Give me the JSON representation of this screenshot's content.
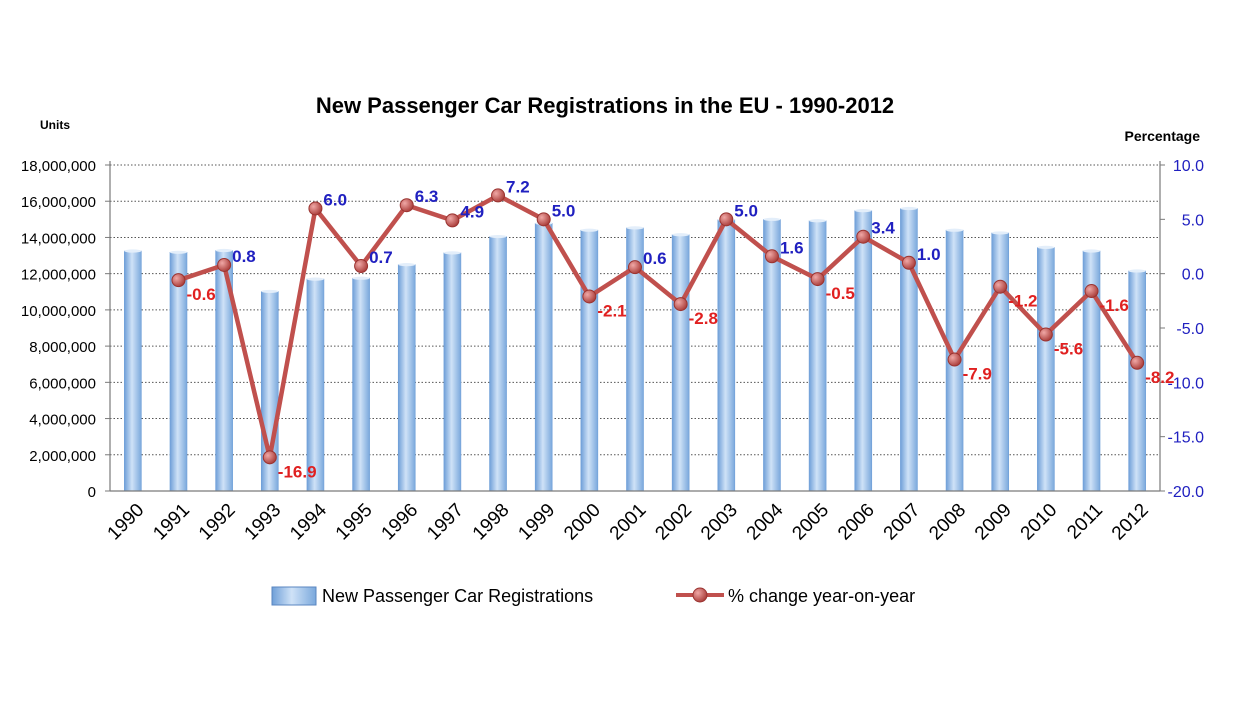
{
  "chart_data": {
    "type": "bar",
    "title": "New Passenger Car Registrations in the EU - 1990-2012",
    "y_left_label": "Units",
    "y_right_label": "Percentage",
    "categories": [
      "1990",
      "1991",
      "1992",
      "1993",
      "1994",
      "1995",
      "1996",
      "1997",
      "1998",
      "1999",
      "2000",
      "2001",
      "2002",
      "2003",
      "2004",
      "2005",
      "2006",
      "2007",
      "2008",
      "2009",
      "2010",
      "2011",
      "2012"
    ],
    "y_left_ticks": [
      "18,000,000",
      "16,000,000",
      "14,000,000",
      "12,000,000",
      "10,000,000",
      "8,000,000",
      "6,000,000",
      "4,000,000",
      "2,000,000",
      "0"
    ],
    "y_left_range": [
      0,
      18000000
    ],
    "y_right_ticks": [
      "10.0",
      "5.0",
      "0.0",
      "-5.0",
      "-10.0",
      "-15.0",
      "-20.0"
    ],
    "y_right_range": [
      -20,
      10
    ],
    "series": [
      {
        "name": "New Passenger Car Registrations",
        "type": "bar",
        "axis": "left",
        "values": [
          13250000,
          13180000,
          13280000,
          11020000,
          11700000,
          11750000,
          12500000,
          13150000,
          14050000,
          14780000,
          14400000,
          14530000,
          14150000,
          14980000,
          15000000,
          14920000,
          15480000,
          15600000,
          14400000,
          14250000,
          13450000,
          13250000,
          12150000
        ],
        "color": "#9cc3ea"
      },
      {
        "name": "% change year-on-year",
        "type": "line",
        "axis": "right",
        "values": [
          null,
          -0.6,
          0.8,
          -16.9,
          6.0,
          0.7,
          6.3,
          4.9,
          7.2,
          5.0,
          -2.1,
          0.6,
          -2.8,
          5.0,
          1.6,
          -0.5,
          3.4,
          1.0,
          -7.9,
          -1.2,
          -5.6,
          -1.6,
          -8.2
        ],
        "labels": [
          "",
          "-0.6",
          "0.8",
          "-16.9",
          "6.0",
          "0.7",
          "6.3",
          "4.9",
          "7.2",
          "5.0",
          "-2.1",
          "0.6",
          "-2.8",
          "5.0",
          "1.6",
          "-0.5",
          "3.4",
          "1.0",
          "-7.9",
          "-1.2",
          "-5.6",
          "-1.6",
          "-8.2"
        ],
        "color": "#c0504d"
      }
    ],
    "positive_label_color": "#2020c0",
    "negative_label_color": "#e02020",
    "grid": true,
    "legend_position": "bottom"
  }
}
